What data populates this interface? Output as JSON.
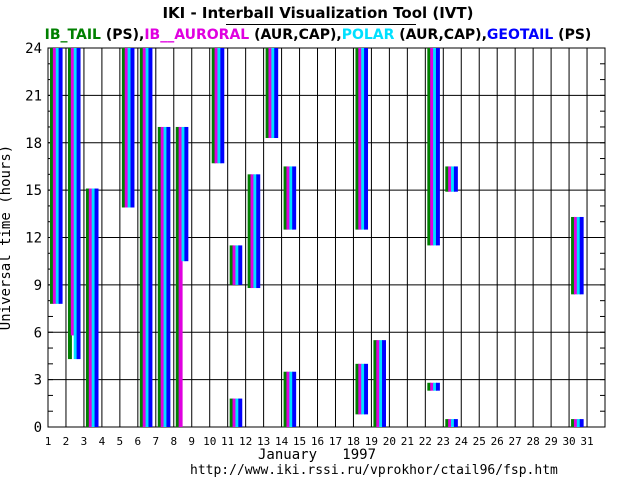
{
  "header": {
    "title": "IKI - Interball Visualization Tool (IVT)",
    "subtitle_parts": [
      {
        "text": "IB_TAIL",
        "color": "#008000"
      },
      {
        "text": " (PS),",
        "color": "#000000"
      },
      {
        "text": "IB__AURORAL",
        "color": "#e000e0"
      },
      {
        "text": " (AUR,CAP),",
        "color": "#000000"
      },
      {
        "text": "POLAR",
        "color": "#00e0ff"
      },
      {
        "text": " (AUR,CAP),",
        "color": "#000000"
      },
      {
        "text": "GEOTAIL",
        "color": "#0000ff"
      },
      {
        "text": " (PS)",
        "color": "#000000"
      }
    ]
  },
  "footer": {
    "month_year": "January   1997",
    "url": "http://www.iki.rssi.ru/vprokhor/ctail96/fsp.htm"
  },
  "chart_data": {
    "type": "bar",
    "xlabel": "January   1997",
    "ylabel": "Universal time  (hours)",
    "ylim": [
      0,
      24
    ],
    "xlim": [
      1,
      32
    ],
    "yticks": [
      0,
      3,
      6,
      9,
      12,
      15,
      18,
      21,
      24
    ],
    "xticks": [
      1,
      2,
      3,
      4,
      5,
      6,
      7,
      8,
      9,
      10,
      11,
      12,
      13,
      14,
      15,
      16,
      17,
      18,
      19,
      20,
      21,
      22,
      23,
      24,
      25,
      26,
      27,
      28,
      29,
      30,
      31
    ],
    "grid": true,
    "series": [
      {
        "name": "IB_TAIL",
        "color": "#008000",
        "offset_day": 0.0,
        "intervals": [
          {
            "day": 1,
            "start": 7.8,
            "end": 24
          },
          {
            "day": 2,
            "start": 4.3,
            "end": 24
          },
          {
            "day": 3,
            "start": 0,
            "end": 15.1
          },
          {
            "day": 5,
            "start": 13.9,
            "end": 24
          },
          {
            "day": 6,
            "start": 0,
            "end": 24
          },
          {
            "day": 7,
            "start": 0,
            "end": 19
          },
          {
            "day": 8,
            "start": 0,
            "end": 19
          },
          {
            "day": 10,
            "start": 16.7,
            "end": 24
          },
          {
            "day": 11,
            "start": 0,
            "end": 1.8
          },
          {
            "day": 11,
            "start": 9.0,
            "end": 11.5
          },
          {
            "day": 12,
            "start": 8.8,
            "end": 16
          },
          {
            "day": 13,
            "start": 18.3,
            "end": 24
          },
          {
            "day": 14,
            "start": 0,
            "end": 3.5
          },
          {
            "day": 14,
            "start": 12.5,
            "end": 16.5
          },
          {
            "day": 18,
            "start": 0.8,
            "end": 4.0
          },
          {
            "day": 18,
            "start": 12.5,
            "end": 24
          },
          {
            "day": 19,
            "start": 0,
            "end": 5.5
          },
          {
            "day": 22,
            "start": 11.5,
            "end": 24
          },
          {
            "day": 22,
            "start": 2.3,
            "end": 2.8
          },
          {
            "day": 23,
            "start": 0,
            "end": 0.5
          },
          {
            "day": 23,
            "start": 14.9,
            "end": 16.5
          },
          {
            "day": 30,
            "start": 8.4,
            "end": 13.3
          },
          {
            "day": 30,
            "start": 0,
            "end": 0.5
          }
        ]
      },
      {
        "name": "IB__AURORAL",
        "color": "#e000e0",
        "offset_day": 0.2,
        "intervals": [
          {
            "day": 1,
            "start": 7.8,
            "end": 24
          },
          {
            "day": 2,
            "start": 5.8,
            "end": 24
          },
          {
            "day": 3,
            "start": 0,
            "end": 15.1
          },
          {
            "day": 5,
            "start": 13.9,
            "end": 24
          },
          {
            "day": 6,
            "start": 0,
            "end": 24
          },
          {
            "day": 7,
            "start": 0,
            "end": 19
          },
          {
            "day": 8,
            "start": 0,
            "end": 19
          },
          {
            "day": 10,
            "start": 16.7,
            "end": 24
          },
          {
            "day": 11,
            "start": 0,
            "end": 1.8
          },
          {
            "day": 11,
            "start": 9.0,
            "end": 11.5
          },
          {
            "day": 12,
            "start": 8.8,
            "end": 16
          },
          {
            "day": 13,
            "start": 18.3,
            "end": 24
          },
          {
            "day": 14,
            "start": 0,
            "end": 3.5
          },
          {
            "day": 14,
            "start": 12.5,
            "end": 16.5
          },
          {
            "day": 18,
            "start": 0.8,
            "end": 4.0
          },
          {
            "day": 18,
            "start": 12.5,
            "end": 24
          },
          {
            "day": 19,
            "start": 0,
            "end": 5.5
          },
          {
            "day": 22,
            "start": 11.5,
            "end": 24
          },
          {
            "day": 22,
            "start": 2.3,
            "end": 2.8
          },
          {
            "day": 23,
            "start": 0,
            "end": 0.5
          },
          {
            "day": 23,
            "start": 14.9,
            "end": 16.5
          },
          {
            "day": 30,
            "start": 8.4,
            "end": 13.3
          },
          {
            "day": 30,
            "start": 0,
            "end": 0.5
          }
        ]
      },
      {
        "name": "POLAR",
        "color": "#00e0ff",
        "offset_day": 0.4,
        "intervals": [
          {
            "day": 1,
            "start": 7.8,
            "end": 24
          },
          {
            "day": 2,
            "start": 4.3,
            "end": 24
          },
          {
            "day": 3,
            "start": 0,
            "end": 15.1
          },
          {
            "day": 5,
            "start": 13.9,
            "end": 24
          },
          {
            "day": 6,
            "start": 0,
            "end": 24
          },
          {
            "day": 7,
            "start": 0,
            "end": 19
          },
          {
            "day": 8,
            "start": 10.5,
            "end": 19
          },
          {
            "day": 10,
            "start": 16.7,
            "end": 24
          },
          {
            "day": 11,
            "start": 0,
            "end": 1.8
          },
          {
            "day": 11,
            "start": 9.0,
            "end": 11.5
          },
          {
            "day": 12,
            "start": 8.8,
            "end": 16
          },
          {
            "day": 13,
            "start": 18.3,
            "end": 24
          },
          {
            "day": 14,
            "start": 0,
            "end": 3.5
          },
          {
            "day": 14,
            "start": 12.5,
            "end": 16.5
          },
          {
            "day": 18,
            "start": 0.8,
            "end": 4.0
          },
          {
            "day": 18,
            "start": 12.5,
            "end": 24
          },
          {
            "day": 19,
            "start": 0,
            "end": 5.5
          },
          {
            "day": 22,
            "start": 11.5,
            "end": 24
          },
          {
            "day": 22,
            "start": 2.3,
            "end": 2.8
          },
          {
            "day": 23,
            "start": 0,
            "end": 0.5
          },
          {
            "day": 23,
            "start": 14.9,
            "end": 16.5
          },
          {
            "day": 30,
            "start": 8.4,
            "end": 13.3
          },
          {
            "day": 30,
            "start": 0,
            "end": 0.5
          }
        ]
      },
      {
        "name": "GEOTAIL",
        "color": "#0000ff",
        "offset_day": 0.6,
        "intervals": [
          {
            "day": 1,
            "start": 7.8,
            "end": 24
          },
          {
            "day": 2,
            "start": 4.3,
            "end": 24
          },
          {
            "day": 3,
            "start": 0,
            "end": 15.1
          },
          {
            "day": 5,
            "start": 13.9,
            "end": 24
          },
          {
            "day": 6,
            "start": 0,
            "end": 24
          },
          {
            "day": 7,
            "start": 0,
            "end": 19
          },
          {
            "day": 8,
            "start": 10.5,
            "end": 19
          },
          {
            "day": 10,
            "start": 16.7,
            "end": 24
          },
          {
            "day": 11,
            "start": 0,
            "end": 1.8
          },
          {
            "day": 11,
            "start": 9.0,
            "end": 11.5
          },
          {
            "day": 12,
            "start": 8.8,
            "end": 16
          },
          {
            "day": 13,
            "start": 18.3,
            "end": 24
          },
          {
            "day": 14,
            "start": 0,
            "end": 3.5
          },
          {
            "day": 14,
            "start": 12.5,
            "end": 16.5
          },
          {
            "day": 18,
            "start": 0.8,
            "end": 4.0
          },
          {
            "day": 18,
            "start": 12.5,
            "end": 24
          },
          {
            "day": 19,
            "start": 0,
            "end": 5.5
          },
          {
            "day": 22,
            "start": 11.5,
            "end": 24
          },
          {
            "day": 22,
            "start": 2.3,
            "end": 2.8
          },
          {
            "day": 23,
            "start": 0,
            "end": 0.5
          },
          {
            "day": 23,
            "start": 14.9,
            "end": 16.5
          },
          {
            "day": 30,
            "start": 8.4,
            "end": 13.3
          },
          {
            "day": 30,
            "start": 0,
            "end": 0.5
          }
        ]
      }
    ]
  }
}
